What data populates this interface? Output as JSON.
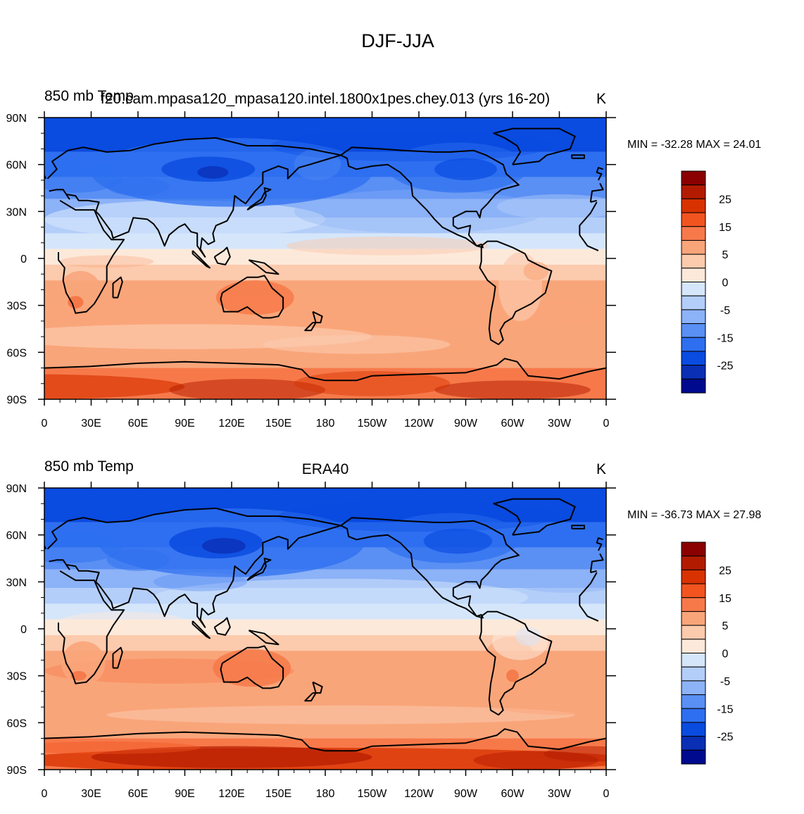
{
  "figure_title": "DJF-JJA",
  "chart_data": [
    {
      "type": "heatmap",
      "title_left": "850 mb Temp",
      "title_center": "f20.cam.mpasa120_mpasa120.intel.1800x1pes.chey.013 (yrs 16-20)",
      "title_right": "K",
      "min_max_text": "MIN = -32.28 MAX =  24.01",
      "min": -32.28,
      "max": 24.01,
      "xlim": [
        0,
        360
      ],
      "ylim": [
        -90,
        90
      ],
      "x_ticks": [
        "0",
        "30E",
        "60E",
        "90E",
        "120E",
        "150E",
        "180",
        "150W",
        "120W",
        "90W",
        "60W",
        "30W",
        "0"
      ],
      "y_ticks": [
        "90N",
        "60N",
        "30N",
        "0",
        "30S",
        "60S",
        "90S"
      ],
      "colorbar_levels": [
        -30,
        -25,
        -20,
        -15,
        -10,
        -5,
        -2,
        0,
        2,
        5,
        10,
        15,
        20,
        25,
        30
      ],
      "colorbar_labels": [
        "25",
        "15",
        "5",
        "0",
        "-5",
        "-15",
        "-25"
      ],
      "colorbar_colors": [
        "#8b0000",
        "#b31b00",
        "#d83200",
        "#f25420",
        "#f7794a",
        "#f9a57a",
        "#fccaad",
        "#fde9da",
        "#d5e6fb",
        "#b3cef9",
        "#8cb2f7",
        "#5a8ff4",
        "#2d6ff0",
        "#0a4be0",
        "#0a2fb5",
        "#000a8f"
      ]
    },
    {
      "type": "heatmap",
      "title_left": "850 mb Temp",
      "title_center": "ERA40",
      "title_right": "K",
      "min_max_text": "MIN = -36.73 MAX =  27.98",
      "min": -36.73,
      "max": 27.98,
      "xlim": [
        0,
        360
      ],
      "ylim": [
        -90,
        90
      ],
      "x_ticks": [
        "0",
        "30E",
        "60E",
        "90E",
        "120E",
        "150E",
        "180",
        "150W",
        "120W",
        "90W",
        "60W",
        "30W",
        "0"
      ],
      "y_ticks": [
        "90N",
        "60N",
        "30N",
        "0",
        "30S",
        "60S",
        "90S"
      ],
      "colorbar_levels": [
        -30,
        -25,
        -20,
        -15,
        -10,
        -5,
        -2,
        0,
        2,
        5,
        10,
        15,
        20,
        25,
        30
      ],
      "colorbar_labels": [
        "25",
        "15",
        "5",
        "0",
        "-5",
        "-15",
        "-25"
      ],
      "colorbar_colors": [
        "#8b0000",
        "#b31b00",
        "#d83200",
        "#f25420",
        "#f7794a",
        "#f9a57a",
        "#fccaad",
        "#fde9da",
        "#d5e6fb",
        "#b3cef9",
        "#8cb2f7",
        "#5a8ff4",
        "#2d6ff0",
        "#0a4be0",
        "#0a2fb5",
        "#000a8f"
      ]
    }
  ]
}
